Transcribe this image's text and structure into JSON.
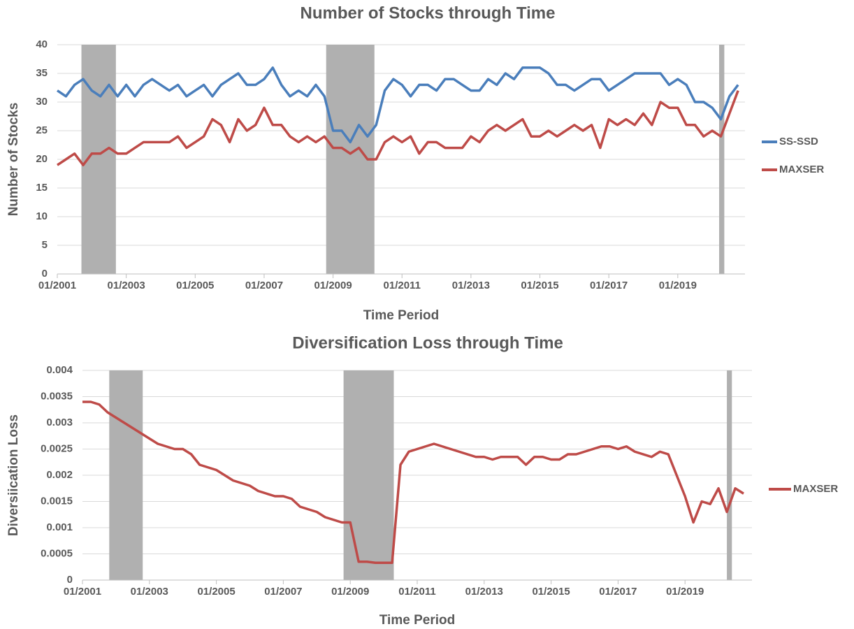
{
  "chart_data": [
    {
      "type": "line",
      "title": "Number of Stocks through Time",
      "x_label": "Time Period",
      "y_label": "Number of Stocks",
      "x": [
        2001,
        2001.25,
        2001.5,
        2001.75,
        2002,
        2002.25,
        2002.5,
        2002.75,
        2003,
        2003.25,
        2003.5,
        2003.75,
        2004,
        2004.25,
        2004.5,
        2004.75,
        2005,
        2005.25,
        2005.5,
        2005.75,
        2006,
        2006.25,
        2006.5,
        2006.75,
        2007,
        2007.25,
        2007.5,
        2007.75,
        2008,
        2008.25,
        2008.5,
        2008.75,
        2009,
        2009.25,
        2009.5,
        2009.75,
        2010,
        2010.25,
        2010.5,
        2010.75,
        2011,
        2011.25,
        2011.5,
        2011.75,
        2012,
        2012.25,
        2012.5,
        2012.75,
        2013,
        2013.25,
        2013.5,
        2013.75,
        2014,
        2014.25,
        2014.5,
        2014.75,
        2015,
        2015.25,
        2015.5,
        2015.75,
        2016,
        2016.25,
        2016.5,
        2016.75,
        2017,
        2017.25,
        2017.5,
        2017.75,
        2018,
        2018.25,
        2018.5,
        2018.75,
        2019,
        2019.25,
        2019.5,
        2019.75,
        2020,
        2020.25,
        2020.5,
        2020.75
      ],
      "series": [
        {
          "name": "SS-SSD",
          "color": "#4a7ebb",
          "values": [
            32,
            31,
            33,
            34,
            32,
            31,
            33,
            31,
            33,
            31,
            33,
            34,
            33,
            32,
            33,
            31,
            32,
            33,
            31,
            33,
            34,
            35,
            33,
            33,
            34,
            36,
            33,
            31,
            32,
            31,
            33,
            31,
            25,
            25,
            23,
            26,
            24,
            26,
            32,
            34,
            33,
            31,
            33,
            33,
            32,
            34,
            34,
            33,
            32,
            32,
            34,
            33,
            35,
            34,
            36,
            36,
            36,
            35,
            33,
            33,
            32,
            33,
            34,
            34,
            32,
            33,
            34,
            35,
            35,
            35,
            35,
            33,
            34,
            33,
            30,
            30,
            29,
            27,
            31,
            33
          ]
        },
        {
          "name": "MAXSER",
          "color": "#be4b48",
          "values": [
            19,
            20,
            21,
            19,
            21,
            21,
            22,
            21,
            21,
            22,
            23,
            23,
            23,
            23,
            24,
            22,
            23,
            24,
            27,
            26,
            23,
            27,
            25,
            26,
            29,
            26,
            26,
            24,
            23,
            24,
            23,
            24,
            22,
            22,
            21,
            22,
            20,
            20,
            23,
            24,
            23,
            24,
            21,
            23,
            23,
            22,
            22,
            22,
            24,
            23,
            25,
            26,
            25,
            26,
            27,
            24,
            24,
            25,
            24,
            25,
            26,
            25,
            26,
            22,
            27,
            26,
            27,
            26,
            28,
            26,
            30,
            29,
            29,
            26,
            26,
            24,
            25,
            24,
            28,
            32
          ]
        }
      ],
      "xlim": [
        2001,
        2020.95
      ],
      "ylim": [
        0,
        40
      ],
      "xticks": [
        {
          "value": 2001,
          "label": "01/2001"
        },
        {
          "value": 2003,
          "label": "01/2003"
        },
        {
          "value": 2005,
          "label": "01/2005"
        },
        {
          "value": 2007,
          "label": "01/2007"
        },
        {
          "value": 2009,
          "label": "01/2009"
        },
        {
          "value": 2011,
          "label": "01/2011"
        },
        {
          "value": 2013,
          "label": "01/2013"
        },
        {
          "value": 2015,
          "label": "01/2015"
        },
        {
          "value": 2017,
          "label": "01/2017"
        },
        {
          "value": 2019,
          "label": "01/2019"
        }
      ],
      "yticks": [
        0,
        5,
        10,
        15,
        20,
        25,
        30,
        35,
        40
      ],
      "bands": [
        [
          2001.7,
          2002.7
        ],
        [
          2008.8,
          2010.2
        ],
        [
          2020.2,
          2020.35
        ]
      ],
      "band_color": "#b0b0b0",
      "grid": true,
      "legend": "right"
    },
    {
      "type": "line",
      "title": "Diversification Loss through Time",
      "x_label": "Time Period",
      "y_label": "Diversiication Loss",
      "x": [
        2001,
        2001.25,
        2001.5,
        2001.75,
        2002,
        2002.25,
        2002.5,
        2002.75,
        2003,
        2003.25,
        2003.5,
        2003.75,
        2004,
        2004.25,
        2004.5,
        2004.75,
        2005,
        2005.25,
        2005.5,
        2005.75,
        2006,
        2006.25,
        2006.5,
        2006.75,
        2007,
        2007.25,
        2007.5,
        2007.75,
        2008,
        2008.25,
        2008.5,
        2008.75,
        2009,
        2009.25,
        2009.5,
        2009.75,
        2010,
        2010.25,
        2010.5,
        2010.75,
        2011,
        2011.25,
        2011.5,
        2011.75,
        2012,
        2012.25,
        2012.5,
        2012.75,
        2013,
        2013.25,
        2013.5,
        2013.75,
        2014,
        2014.25,
        2014.5,
        2014.75,
        2015,
        2015.25,
        2015.5,
        2015.75,
        2016,
        2016.25,
        2016.5,
        2016.75,
        2017,
        2017.25,
        2017.5,
        2017.75,
        2018,
        2018.25,
        2018.5,
        2018.75,
        2019,
        2019.25,
        2019.5,
        2019.75,
        2020,
        2020.25,
        2020.5,
        2020.75
      ],
      "series": [
        {
          "name": "MAXSER",
          "color": "#be4b48",
          "values": [
            0.0034,
            0.0034,
            0.00335,
            0.0032,
            0.0031,
            0.003,
            0.0029,
            0.0028,
            0.0027,
            0.0026,
            0.00255,
            0.0025,
            0.0025,
            0.0024,
            0.0022,
            0.00215,
            0.0021,
            0.002,
            0.0019,
            0.00185,
            0.0018,
            0.0017,
            0.00165,
            0.0016,
            0.0016,
            0.00155,
            0.0014,
            0.00135,
            0.0013,
            0.0012,
            0.00115,
            0.0011,
            0.0011,
            0.00035,
            0.00035,
            0.00033,
            0.00033,
            0.00033,
            0.0022,
            0.00245,
            0.0025,
            0.00255,
            0.0026,
            0.00255,
            0.0025,
            0.00245,
            0.0024,
            0.00235,
            0.00235,
            0.0023,
            0.00235,
            0.00235,
            0.00235,
            0.0022,
            0.00235,
            0.00235,
            0.0023,
            0.0023,
            0.0024,
            0.0024,
            0.00245,
            0.0025,
            0.00255,
            0.00255,
            0.0025,
            0.00255,
            0.00245,
            0.0024,
            0.00235,
            0.00245,
            0.0024,
            0.002,
            0.0016,
            0.0011,
            0.0015,
            0.00145,
            0.00175,
            0.0013,
            0.00175,
            0.00165
          ]
        }
      ],
      "xlim": [
        2001,
        2021
      ],
      "ylim": [
        0,
        0.004
      ],
      "xticks": [
        {
          "value": 2001,
          "label": "01/2001"
        },
        {
          "value": 2003,
          "label": "01/2003"
        },
        {
          "value": 2005,
          "label": "01/2005"
        },
        {
          "value": 2007,
          "label": "01/2007"
        },
        {
          "value": 2009,
          "label": "01/2009"
        },
        {
          "value": 2011,
          "label": "01/2011"
        },
        {
          "value": 2013,
          "label": "01/2013"
        },
        {
          "value": 2015,
          "label": "01/2015"
        },
        {
          "value": 2017,
          "label": "01/2017"
        },
        {
          "value": 2019,
          "label": "01/2019"
        }
      ],
      "yticks": [
        0,
        0.0005,
        0.001,
        0.0015,
        0.002,
        0.0025,
        0.003,
        0.0035,
        0.004
      ],
      "bands": [
        [
          2001.8,
          2002.8
        ],
        [
          2008.8,
          2010.3
        ],
        [
          2020.25,
          2020.4
        ]
      ],
      "band_color": "#b0b0b0",
      "grid": true,
      "legend": "right"
    }
  ]
}
